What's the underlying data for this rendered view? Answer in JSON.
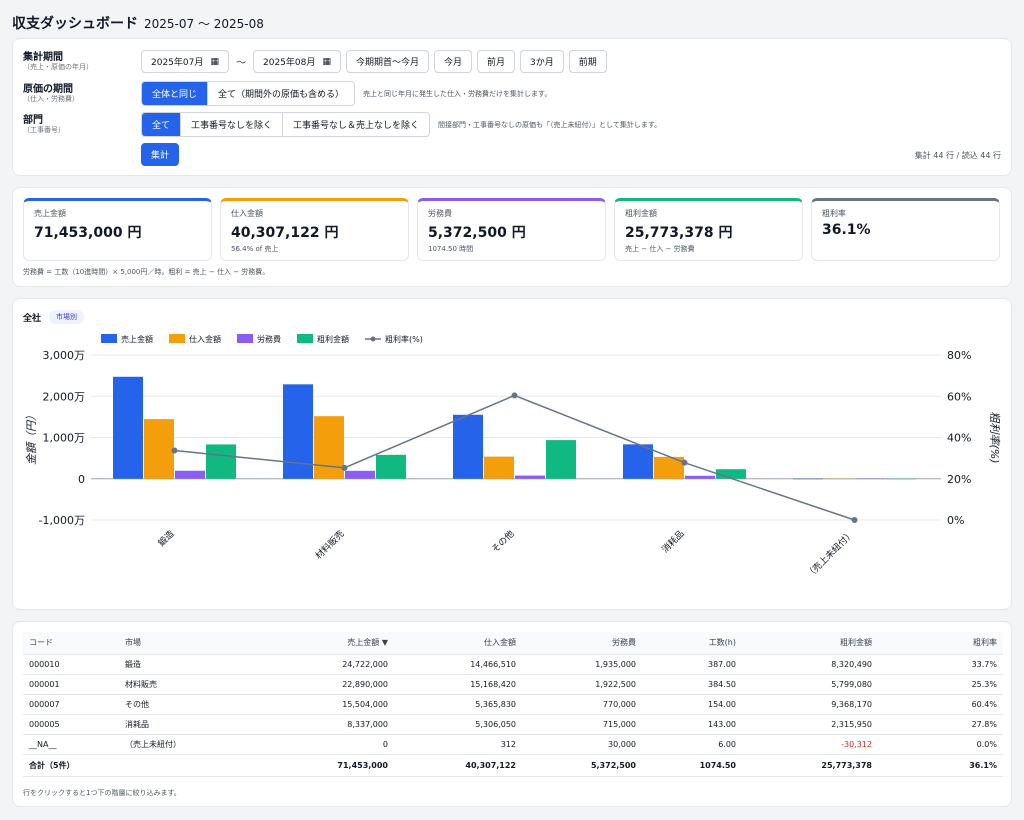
{
  "header": {
    "title": "収支ダッシュボード",
    "period": "2025-07 〜 2025-08"
  },
  "filters": {
    "period_label": "集計期間",
    "period_sub": "（売上・原価の年月）",
    "date_from": "2025年07月",
    "date_to": "2025年08月",
    "separator": "〜",
    "presets": [
      "今期期首〜今月",
      "今月",
      "前月",
      "3か月",
      "前期"
    ],
    "cost_label": "原価の期間",
    "cost_sub": "（仕入・労務費）",
    "cost_options": [
      "全体と同じ",
      "全て（期間外の原価も含める）"
    ],
    "cost_hint": "売上と同じ年月に発生した仕入・労務費だけを集計します。",
    "dept_label": "部門",
    "dept_sub": "（工事番号）",
    "dept_options": [
      "全て",
      "工事番号なしを除く",
      "工事番号なし＆売上なしを除く"
    ],
    "dept_hint": "間接部門・工事番号なしの原価も「（売上未紐付）」として集計します。",
    "submit_label": "集計",
    "row_count": "集計 44 行 / 読込 44 行"
  },
  "kpis": [
    {
      "label": "売上金額",
      "value": "71,453,000 円",
      "note": "",
      "color": "#2563eb"
    },
    {
      "label": "仕入金額",
      "value": "40,307,122 円",
      "note": "56.4% of 売上",
      "color": "#f59e0b"
    },
    {
      "label": "労務費",
      "value": "5,372,500 円",
      "note": "1074.50 時間",
      "color": "#8b5cf6"
    },
    {
      "label": "粗利金額",
      "value": "25,773,378 円",
      "note": "売上 − 仕入 − 労務費",
      "color": "#10b981"
    },
    {
      "label": "粗利率",
      "value": "36.1%",
      "note": "",
      "color": "#6b7280"
    }
  ],
  "summary_note": "労務費 = 工数（10進時間）× 5,000円／時。粗利 = 売上 − 仕入 − 労務費。",
  "chart_section": {
    "scope": "全社",
    "tag": "市場別"
  },
  "chart_data": {
    "type": "bar",
    "categories": [
      "鍛造",
      "材料販売",
      "その他",
      "消耗品",
      "（売上未紐付）"
    ],
    "series": [
      {
        "name": "売上金額",
        "color": "#2563eb",
        "values": [
          24722000,
          22890000,
          15504000,
          8337000,
          0
        ]
      },
      {
        "name": "仕入金額",
        "color": "#f59e0b",
        "values": [
          14466510,
          15168420,
          5365830,
          5306050,
          312
        ]
      },
      {
        "name": "労務費",
        "color": "#8b5cf6",
        "values": [
          1935000,
          1922500,
          770000,
          715000,
          30000
        ]
      },
      {
        "name": "粗利金額",
        "color": "#10b981",
        "values": [
          8320490,
          5799080,
          9368170,
          2315950,
          -30312
        ]
      }
    ],
    "line_series": {
      "name": "粗利率(%)",
      "color": "#64748b",
      "values": [
        33.7,
        25.3,
        60.4,
        27.8,
        0.0
      ]
    },
    "ylabel": "金額（円）",
    "y2label": "粗利率(%)",
    "ylim": [
      -10000000,
      30000000
    ],
    "yticks": [
      "3,000万",
      "2,000万",
      "1,000万",
      "0",
      "-1,000万"
    ],
    "ytick_values": [
      30000000,
      20000000,
      10000000,
      0,
      -10000000
    ],
    "y2lim": [
      0,
      80
    ],
    "y2ticks": [
      "80%",
      "60%",
      "40%",
      "20%",
      "0%"
    ],
    "y2tick_values": [
      80,
      60,
      40,
      20,
      0
    ],
    "legend": "top-left",
    "grid": true
  },
  "table": {
    "columns": [
      "コード",
      "市場",
      "売上金額 ▼",
      "仕入金額",
      "労務費",
      "工数(h)",
      "粗利金額",
      "粗利率"
    ],
    "rows": [
      [
        "000010",
        "鍛造",
        "24,722,000",
        "14,466,510",
        "1,935,000",
        "387.00",
        "8,320,490",
        "33.7%"
      ],
      [
        "000001",
        "材料販売",
        "22,890,000",
        "15,168,420",
        "1,922,500",
        "384.50",
        "5,799,080",
        "25.3%"
      ],
      [
        "000007",
        "その他",
        "15,504,000",
        "5,365,830",
        "770,000",
        "154.00",
        "9,368,170",
        "60.4%"
      ],
      [
        "000005",
        "消耗品",
        "8,337,000",
        "5,306,050",
        "715,000",
        "143.00",
        "2,315,950",
        "27.8%"
      ],
      [
        "__NA__",
        "（売上未紐付）",
        "0",
        "312",
        "30,000",
        "6.00",
        "-30,312",
        "0.0%"
      ]
    ],
    "total": [
      "合計（5件）",
      "",
      "71,453,000",
      "40,307,122",
      "5,372,500",
      "1074.50",
      "25,773,378",
      "36.1%"
    ],
    "note": "行をクリックすると1つ下の階層に絞り込みます。"
  }
}
